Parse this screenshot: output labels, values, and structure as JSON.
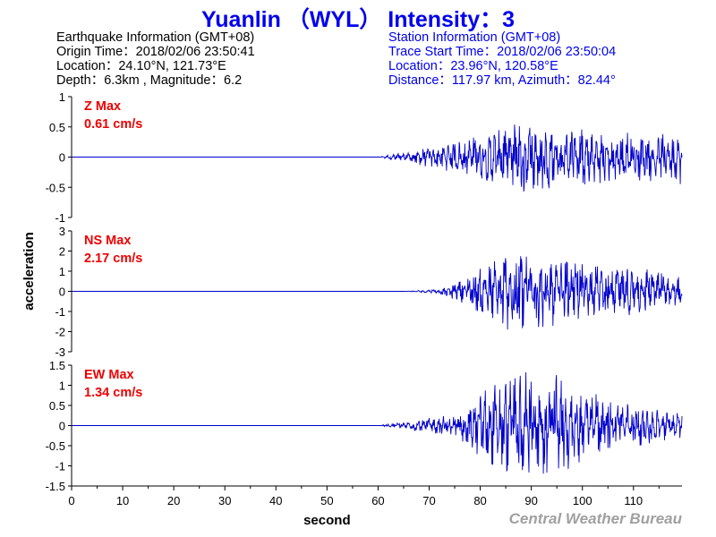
{
  "title": "Yuanlin （WYL） Intensity：3",
  "earthquake": {
    "heading": "Earthquake Information  (GMT+08)",
    "origin_time": "Origin Time：2018/02/06 23:50:41",
    "location": "Location：24.10°N, 121.73°E",
    "depth_magnitude": "Depth：6.3km , Magnitude：6.2"
  },
  "station": {
    "heading": "Station Information  (GMT+08)",
    "trace_start": "Trace Start Time：2018/02/06 23:50:04",
    "location": "Location：23.96°N, 120.58°E",
    "distance": "Distance：117.97 km, Azimuth：82.44°"
  },
  "credit": "Central Weather Bureau",
  "chart_data": {
    "type": "line",
    "xlabel": "second",
    "ylabel": "acceleration",
    "xlim": [
      0,
      119.5
    ],
    "xticks": [
      0,
      10,
      20,
      30,
      40,
      50,
      60,
      70,
      80,
      90,
      100,
      110
    ],
    "line_color": "#0000cc",
    "label_color": "#ee0000",
    "panels": [
      {
        "component": "Z",
        "label": "Z Max",
        "max_label": "0.61 cm/s",
        "max_value": 0.61,
        "ylim": [
          -1,
          1
        ],
        "yticks": [
          1,
          0.5,
          0,
          -0.5,
          -1
        ],
        "signal_onset_s": 60,
        "envelope_s": [
          0,
          60,
          65,
          75,
          85,
          88,
          95,
          105,
          115,
          119.5
        ],
        "envelope_amp": [
          0,
          0,
          0.08,
          0.22,
          0.42,
          0.61,
          0.45,
          0.38,
          0.35,
          0.4
        ]
      },
      {
        "component": "NS",
        "label": "NS Max",
        "max_label": "2.17 cm/s",
        "max_value": 2.17,
        "ylim": [
          -3,
          3
        ],
        "yticks": [
          3,
          2,
          1,
          0,
          -1,
          -2,
          -3
        ],
        "signal_onset_s": 65,
        "envelope_s": [
          0,
          65,
          72,
          76,
          80,
          88,
          95,
          105,
          112,
          119.5
        ],
        "envelope_amp": [
          0,
          0,
          0.1,
          0.5,
          1.0,
          2.1,
          1.5,
          1.0,
          1.1,
          0.6
        ]
      },
      {
        "component": "EW",
        "label": "EW Max",
        "max_label": "1.34 cm/s",
        "max_value": 1.34,
        "ylim": [
          -1.5,
          1.5
        ],
        "yticks": [
          1.5,
          1,
          0.5,
          0,
          -0.5,
          -1,
          -1.5
        ],
        "signal_onset_s": 60,
        "envelope_s": [
          0,
          60,
          65,
          75,
          82,
          88,
          95,
          105,
          115,
          119.5
        ],
        "envelope_amp": [
          0,
          0,
          0.08,
          0.25,
          0.9,
          1.3,
          1.1,
          0.6,
          0.35,
          0.3
        ]
      }
    ]
  }
}
